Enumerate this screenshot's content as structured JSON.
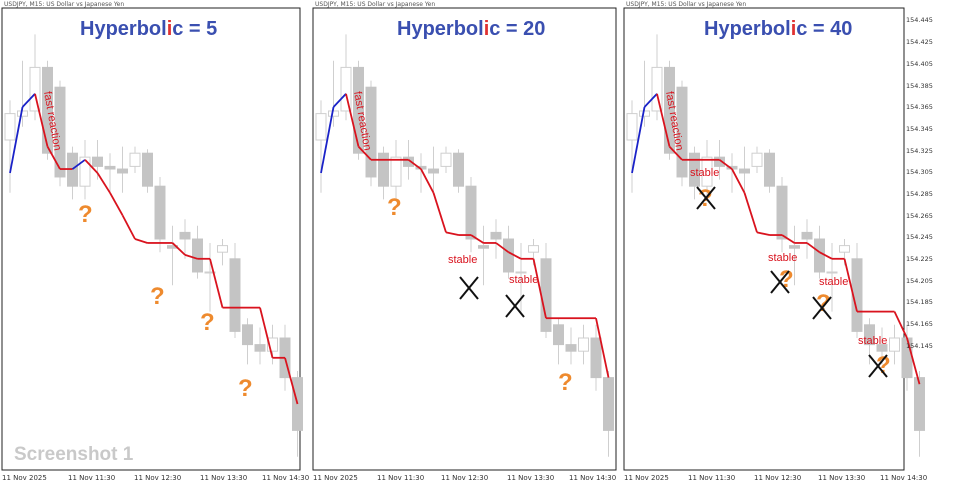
{
  "symbol_label": "USDJPY, M15:  US Dollar vs Japanese Yen",
  "watermark": "Screenshot 1",
  "colors": {
    "up_line": "#1a22c8",
    "down_line": "#d9131e",
    "candle": "#c4c4c4",
    "question": "#ee8a2e",
    "title": "#3a4fb0",
    "title_highlight": "#e03131",
    "stable": "#d9131e"
  },
  "y_axis_ticks": [
    "154.445",
    "154.425",
    "154.405",
    "154.385",
    "154.365",
    "154.345",
    "154.325",
    "154.305",
    "154.285",
    "154.265",
    "154.245",
    "154.225",
    "154.205",
    "154.185",
    "154.165",
    "154.145"
  ],
  "panels": [
    {
      "title_pre": "Hyperbol",
      "title_hl": "i",
      "title_post": "c = 5",
      "x_ticks": [
        "11 Nov 2025",
        "11 Nov 11:30",
        "11 Nov 12:30",
        "11 Nov 13:30",
        "11 Nov 14:30"
      ],
      "labels": [
        "fast reaction"
      ]
    },
    {
      "title_pre": "Hyperbol",
      "title_hl": "i",
      "title_post": "c = 20",
      "x_ticks": [
        "11 Nov 2025",
        "11 Nov 11:30",
        "11 Nov 12:30",
        "11 Nov 13:30",
        "11 Nov 14:30"
      ],
      "labels": [
        "fast reaction",
        "stable",
        "stable"
      ]
    },
    {
      "title_pre": "Hyperbol",
      "title_hl": "i",
      "title_post": "c = 40",
      "x_ticks": [
        "11 Nov 2025",
        "11 Nov 11:30",
        "11 Nov 12:30",
        "11 Nov 13:30",
        "11 Nov 14:30"
      ],
      "labels": [
        "fast reaction",
        "stable",
        "stable",
        "stable",
        "stable"
      ]
    }
  ],
  "chart_data": [
    {
      "type": "line",
      "title": "Hyperbolic = 5",
      "candles": {
        "open": [
          154.34,
          154.358,
          154.362,
          154.395,
          154.38,
          154.33,
          154.305,
          154.327,
          154.32,
          154.318,
          154.32,
          154.33,
          154.305,
          154.26,
          154.27,
          154.265,
          154.24,
          154.255,
          154.25,
          154.2,
          154.185,
          154.18,
          154.19,
          154.16
        ],
        "close": [
          154.36,
          154.362,
          154.395,
          154.33,
          154.312,
          154.305,
          154.327,
          154.32,
          154.318,
          154.315,
          154.33,
          154.305,
          154.265,
          154.258,
          154.265,
          154.24,
          154.24,
          154.26,
          154.195,
          154.185,
          154.18,
          154.19,
          154.16,
          154.12
        ],
        "high": [
          154.37,
          154.4,
          154.42,
          154.4,
          154.385,
          154.335,
          154.34,
          154.34,
          154.33,
          154.335,
          154.335,
          154.333,
          154.312,
          154.275,
          154.28,
          154.275,
          154.262,
          154.265,
          154.262,
          154.205,
          154.198,
          154.2,
          154.2,
          154.165
        ],
        "low": [
          154.3,
          154.35,
          154.355,
          154.325,
          154.305,
          154.295,
          154.295,
          154.31,
          154.3,
          154.3,
          154.315,
          154.3,
          154.255,
          154.23,
          154.25,
          154.235,
          154.21,
          154.245,
          154.19,
          154.17,
          154.17,
          154.17,
          154.15,
          154.1
        ]
      },
      "series": [
        {
          "name": "",
          "values": [
            154.315,
            154.365,
            154.375,
            154.335,
            154.318,
            154.318,
            154.325,
            154.315,
            154.3,
            154.283,
            154.265,
            154.262,
            154.262,
            154.262,
            154.253,
            154.25,
            154.25,
            154.213,
            154.213,
            154.213,
            154.213,
            154.175,
            154.175,
            154.14
          ]
        }
      ]
    },
    {
      "type": "line",
      "title": "Hyperbolic = 20",
      "candles": {
        "open": [
          154.34,
          154.358,
          154.362,
          154.395,
          154.38,
          154.33,
          154.305,
          154.327,
          154.32,
          154.318,
          154.32,
          154.33,
          154.305,
          154.26,
          154.27,
          154.265,
          154.24,
          154.255,
          154.25,
          154.2,
          154.185,
          154.18,
          154.19,
          154.16
        ],
        "close": [
          154.36,
          154.362,
          154.395,
          154.33,
          154.312,
          154.305,
          154.327,
          154.32,
          154.318,
          154.315,
          154.33,
          154.305,
          154.265,
          154.258,
          154.265,
          154.24,
          154.24,
          154.26,
          154.195,
          154.185,
          154.18,
          154.19,
          154.16,
          154.12
        ],
        "high": [
          154.37,
          154.4,
          154.42,
          154.4,
          154.385,
          154.335,
          154.34,
          154.34,
          154.33,
          154.335,
          154.335,
          154.333,
          154.312,
          154.275,
          154.28,
          154.275,
          154.262,
          154.265,
          154.262,
          154.205,
          154.198,
          154.2,
          154.2,
          154.165
        ],
        "low": [
          154.3,
          154.35,
          154.355,
          154.325,
          154.305,
          154.295,
          154.295,
          154.31,
          154.3,
          154.3,
          154.315,
          154.3,
          154.255,
          154.23,
          154.25,
          154.235,
          154.21,
          154.245,
          154.19,
          154.17,
          154.17,
          154.17,
          154.15,
          154.1
        ]
      },
      "series": [
        {
          "name": "",
          "values": [
            154.315,
            154.365,
            154.375,
            154.335,
            154.325,
            154.325,
            154.325,
            154.325,
            154.318,
            154.3,
            154.27,
            154.268,
            154.268,
            154.262,
            154.262,
            154.255,
            154.25,
            154.25,
            154.205,
            154.205,
            154.205,
            154.205,
            154.205,
            154.16
          ]
        }
      ]
    },
    {
      "type": "line",
      "title": "Hyperbolic = 40",
      "candles": {
        "open": [
          154.34,
          154.358,
          154.362,
          154.395,
          154.38,
          154.33,
          154.305,
          154.327,
          154.32,
          154.318,
          154.32,
          154.33,
          154.305,
          154.26,
          154.27,
          154.265,
          154.24,
          154.255,
          154.25,
          154.2,
          154.185,
          154.18,
          154.19,
          154.16
        ],
        "close": [
          154.36,
          154.362,
          154.395,
          154.33,
          154.312,
          154.305,
          154.327,
          154.32,
          154.318,
          154.315,
          154.33,
          154.305,
          154.265,
          154.258,
          154.265,
          154.24,
          154.24,
          154.26,
          154.195,
          154.185,
          154.18,
          154.19,
          154.16,
          154.12
        ],
        "high": [
          154.37,
          154.4,
          154.42,
          154.4,
          154.385,
          154.335,
          154.34,
          154.34,
          154.33,
          154.335,
          154.335,
          154.333,
          154.312,
          154.275,
          154.28,
          154.275,
          154.262,
          154.265,
          154.262,
          154.205,
          154.198,
          154.2,
          154.2,
          154.165
        ],
        "low": [
          154.3,
          154.35,
          154.355,
          154.325,
          154.305,
          154.295,
          154.295,
          154.31,
          154.3,
          154.3,
          154.315,
          154.3,
          154.255,
          154.23,
          154.25,
          154.235,
          154.21,
          154.245,
          154.19,
          154.17,
          154.17,
          154.17,
          154.15,
          154.1
        ]
      },
      "series": [
        {
          "name": "",
          "values": [
            154.315,
            154.365,
            154.375,
            154.335,
            154.325,
            154.325,
            154.325,
            154.325,
            154.318,
            154.3,
            154.27,
            154.268,
            154.268,
            154.262,
            154.262,
            154.255,
            154.25,
            154.25,
            154.21,
            154.21,
            154.21,
            154.21,
            154.19,
            154.155
          ]
        }
      ]
    }
  ]
}
